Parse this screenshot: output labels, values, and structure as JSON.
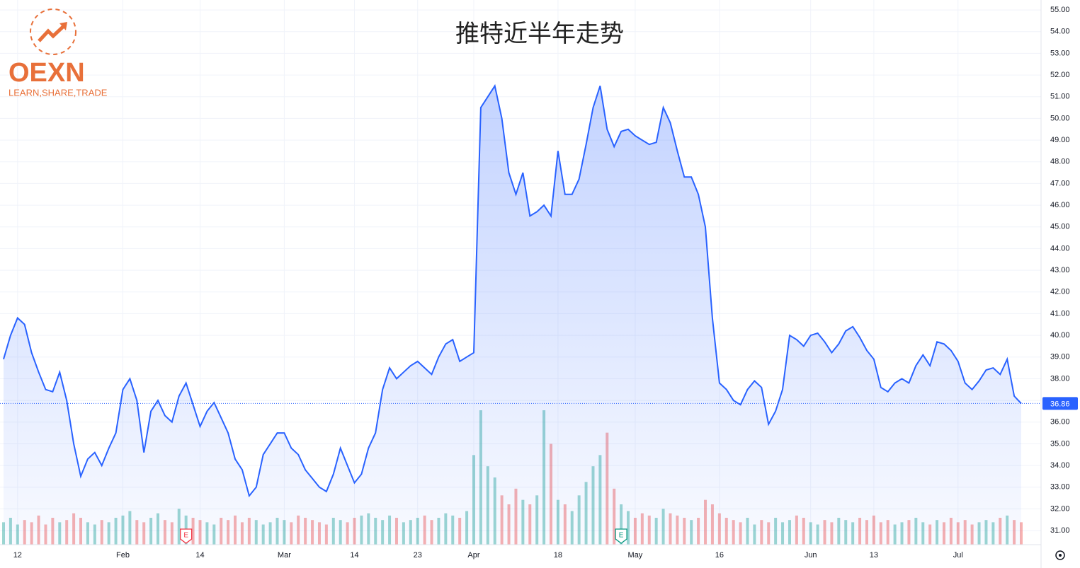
{
  "logo": {
    "name": "OEXN",
    "tagline": "LEARN,SHARE,TRADE"
  },
  "chart_data": {
    "type": "area",
    "title": "推特近半年走势",
    "categories": [
      null,
      null,
      "12",
      null,
      null,
      null,
      null,
      null,
      null,
      null,
      null,
      null,
      null,
      null,
      null,
      null,
      null,
      "Feb",
      null,
      null,
      null,
      null,
      null,
      null,
      null,
      null,
      null,
      null,
      "14",
      null,
      null,
      null,
      null,
      null,
      null,
      null,
      null,
      null,
      null,
      null,
      "Mar",
      null,
      null,
      null,
      null,
      null,
      null,
      null,
      null,
      null,
      "14",
      null,
      null,
      null,
      null,
      null,
      null,
      null,
      null,
      "23",
      null,
      null,
      null,
      null,
      null,
      null,
      null,
      "Apr",
      null,
      null,
      null,
      null,
      null,
      null,
      null,
      null,
      null,
      null,
      null,
      "18",
      null,
      null,
      null,
      null,
      null,
      null,
      null,
      null,
      null,
      null,
      "May",
      null,
      null,
      null,
      null,
      null,
      null,
      null,
      null,
      null,
      null,
      null,
      "16",
      null,
      null,
      null,
      null,
      null,
      null,
      null,
      null,
      null,
      null,
      null,
      null,
      "Jun",
      null,
      null,
      null,
      null,
      null,
      null,
      null,
      null,
      "13",
      null,
      null,
      null,
      null,
      null,
      null,
      null,
      null,
      null,
      null,
      null,
      "Jul",
      null,
      null,
      null,
      null,
      null,
      null,
      null,
      null,
      null
    ],
    "series": [
      {
        "color": "#2962ff",
        "values": [
          38.9,
          40.0,
          40.8,
          40.5,
          39.2,
          38.3,
          37.5,
          37.4,
          38.3,
          37.0,
          35.0,
          33.5,
          34.3,
          34.6,
          34.0,
          34.8,
          35.5,
          37.5,
          38.0,
          37.0,
          34.6,
          36.5,
          37.0,
          36.3,
          36.0,
          37.2,
          37.8,
          36.8,
          35.8,
          36.5,
          36.9,
          36.2,
          35.5,
          34.3,
          33.8,
          32.6,
          33.0,
          34.5,
          35.0,
          35.5,
          35.5,
          34.8,
          34.5,
          33.8,
          33.4,
          33.0,
          32.8,
          33.6,
          34.8,
          34.0,
          33.2,
          33.6,
          34.8,
          35.5,
          37.5,
          38.5,
          38.0,
          38.3,
          38.6,
          38.8,
          38.5,
          38.2,
          39.0,
          39.6,
          39.8,
          38.8,
          39.0,
          39.2,
          50.5,
          51.0,
          51.5,
          50.0,
          47.5,
          46.5,
          47.5,
          45.5,
          45.7,
          46.0,
          45.5,
          48.5,
          46.5,
          46.5,
          47.2,
          48.8,
          50.5,
          51.5,
          49.5,
          48.7,
          49.4,
          49.5,
          49.2,
          49.0,
          48.8,
          48.9,
          50.5,
          49.8,
          48.5,
          47.3,
          47.3,
          46.5,
          45.0,
          40.8,
          37.8,
          37.5,
          37.0,
          36.8,
          37.5,
          37.9,
          37.6,
          35.9,
          36.5,
          37.5,
          40.0,
          39.8,
          39.5,
          40.0,
          40.1,
          39.7,
          39.2,
          39.6,
          40.2,
          40.4,
          39.9,
          39.3,
          38.9,
          37.6,
          37.4,
          37.8,
          38.0,
          37.8,
          38.6,
          39.1,
          38.6,
          39.7,
          39.6,
          39.3,
          38.8,
          37.8,
          37.5,
          37.9,
          38.4,
          38.5,
          38.2,
          38.9,
          37.2,
          36.86
        ]
      }
    ],
    "volume": [
      10,
      12,
      9,
      11,
      10,
      13,
      9,
      12,
      10,
      11,
      14,
      12,
      10,
      9,
      11,
      10,
      12,
      13,
      15,
      11,
      10,
      12,
      14,
      11,
      10,
      16,
      13,
      12,
      11,
      10,
      9,
      12,
      11,
      13,
      10,
      12,
      11,
      9,
      10,
      12,
      11,
      10,
      13,
      12,
      11,
      10,
      9,
      12,
      11,
      10,
      12,
      13,
      14,
      12,
      11,
      13,
      12,
      10,
      11,
      12,
      13,
      11,
      12,
      14,
      13,
      12,
      15,
      40,
      60,
      35,
      30,
      22,
      18,
      25,
      20,
      18,
      22,
      60,
      45,
      20,
      18,
      15,
      22,
      28,
      35,
      40,
      50,
      25,
      18,
      15,
      12,
      14,
      13,
      12,
      16,
      14,
      13,
      12,
      11,
      12,
      20,
      18,
      14,
      12,
      11,
      10,
      12,
      9,
      11,
      10,
      12,
      10,
      11,
      13,
      12,
      10,
      9,
      11,
      10,
      12,
      11,
      10,
      12,
      11,
      13,
      10,
      11,
      9,
      10,
      11,
      12,
      10,
      9,
      11,
      10,
      12,
      10,
      11,
      9,
      10,
      11,
      10,
      12,
      13,
      11,
      10
    ],
    "volume_up_color": "#26a69a",
    "volume_down_color": "#ef5350",
    "last_value": 36.86,
    "events": [
      {
        "label": "E",
        "index": 26,
        "color": "#f23645"
      },
      {
        "label": "E",
        "index": 88,
        "color": "#089981"
      }
    ],
    "ylim": [
      30.35,
      55.46
    ],
    "yticks": [
      {
        "value": 31,
        "label": "31.00"
      },
      {
        "value": 32,
        "label": "32.00"
      },
      {
        "value": 33,
        "label": "33.00"
      },
      {
        "value": 34,
        "label": "34.00"
      },
      {
        "value": 35,
        "label": "35.00"
      },
      {
        "value": 36,
        "label": "36.00"
      },
      {
        "value": 37,
        "label": "37.00"
      },
      {
        "value": 38,
        "label": "38.00"
      },
      {
        "value": 39,
        "label": "39.00"
      },
      {
        "value": 40,
        "label": "40.00"
      },
      {
        "value": 41,
        "label": "41.00"
      },
      {
        "value": 42,
        "label": "42.00"
      },
      {
        "value": 43,
        "label": "43.00"
      },
      {
        "value": 44,
        "label": "44.00"
      },
      {
        "value": 45,
        "label": "45.00"
      },
      {
        "value": 46,
        "label": "46.00"
      },
      {
        "value": 47,
        "label": "47.00"
      },
      {
        "value": 48,
        "label": "48.00"
      },
      {
        "value": 49,
        "label": "49.00"
      },
      {
        "value": 50,
        "label": "50.00"
      },
      {
        "value": 51,
        "label": "51.00"
      },
      {
        "value": 52,
        "label": "52.00"
      },
      {
        "value": 53,
        "label": "53.00"
      },
      {
        "value": 54,
        "label": "54.00"
      },
      {
        "value": 55,
        "label": "55.00"
      }
    ],
    "grid": true
  }
}
